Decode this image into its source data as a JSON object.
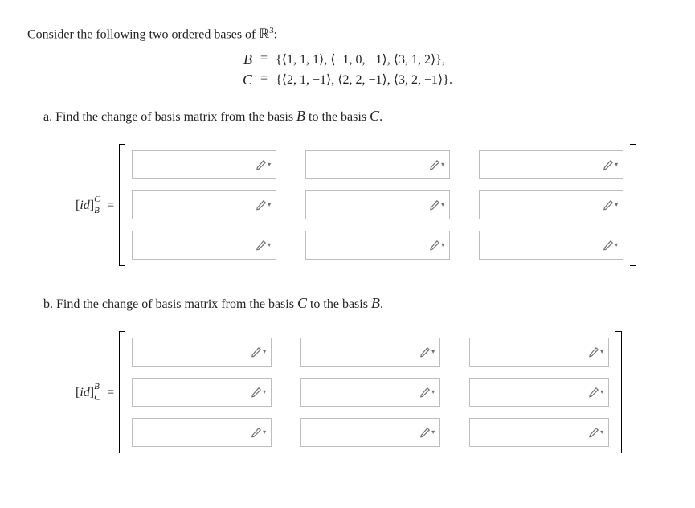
{
  "intro_prefix": "Consider the following two ordered bases of ",
  "space_symbol": "ℝ",
  "space_exponent": "3",
  "intro_suffix": ":",
  "basis_B": {
    "letter": "B",
    "eq": "=",
    "set": "{⟨1, 1, 1⟩, ⟨−1, 0, −1⟩, ⟨3, 1, 2⟩},"
  },
  "basis_C": {
    "letter": "C",
    "eq": "=",
    "set": "{⟨2, 1, −1⟩, ⟨2, 2, −1⟩, ⟨3, 2, −1⟩}."
  },
  "part_a": {
    "prefix": "a. Find the change of basis matrix from the basis ",
    "from": "B",
    "mid": " to the basis ",
    "to": "C",
    "suffix": ".",
    "label_id_open": "[",
    "label_id_body": "id",
    "label_id_close": "]",
    "label_sup": "C",
    "label_sub": "B",
    "label_eq": " ="
  },
  "part_b": {
    "prefix": "b. Find the change of basis matrix from the basis ",
    "from": "C",
    "mid": " to the basis ",
    "to": "B",
    "suffix": ".",
    "label_id_open": "[",
    "label_id_body": "id",
    "label_id_close": "]",
    "label_sup": "B",
    "label_sub": "C",
    "label_eq": " ="
  },
  "matrix": {
    "rows": 3,
    "cols": 3
  },
  "icon_color": "#555"
}
